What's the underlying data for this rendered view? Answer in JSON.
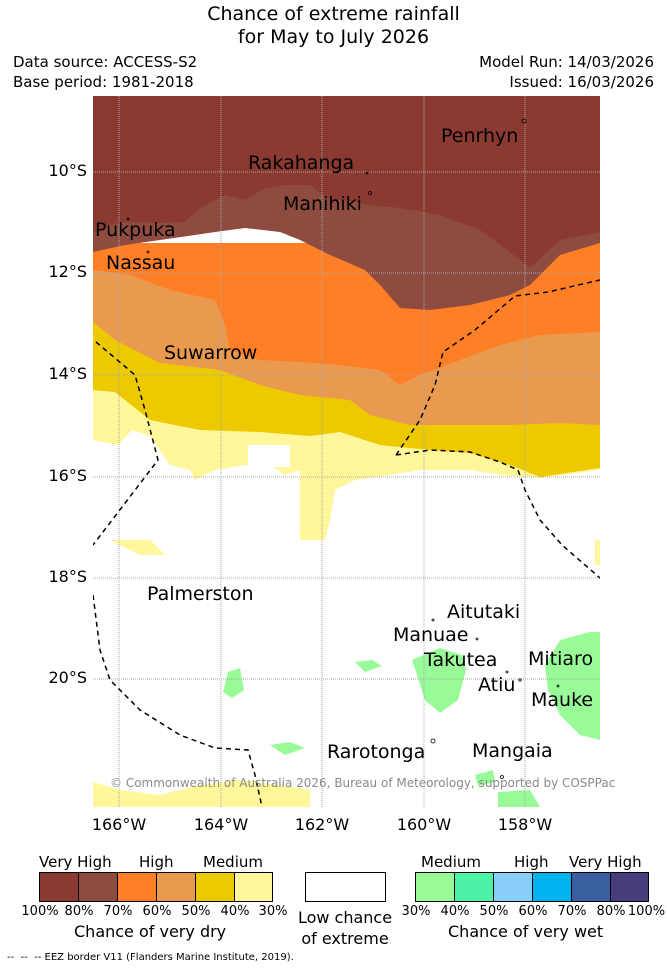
{
  "header": {
    "title_line1": "Chance of extreme rainfall",
    "title_line2": "for May to July 2026",
    "data_source": "Data source: ACCESS-S2",
    "base_period": "Base period: 1981-2018",
    "model_run": "Model Run: 14/03/2026",
    "issued": "Issued: 16/03/2026"
  },
  "map": {
    "lat_labels": [
      "10°S",
      "12°S",
      "14°S",
      "16°S",
      "18°S",
      "20°S"
    ],
    "lon_labels": [
      "166°W",
      "164°W",
      "162°W",
      "160°W",
      "158°W"
    ],
    "islands": [
      "Penrhyn",
      "Rakahanga",
      "Manihiki",
      "Pukpuka",
      "Nassau",
      "Suwarrow",
      "Palmerston",
      "Aitutaki",
      "Manuae",
      "Takutea",
      "Mitiaro",
      "Atiu",
      "Mauke",
      "Rarotonga",
      "Mangaia"
    ],
    "copyright": "© Commonwealth of Australia 2026, Bureau of Meteorology, supported by COSPPac"
  },
  "legend": {
    "dry_headers": [
      "Very High",
      "High",
      "Medium"
    ],
    "dry_ticks": [
      "100%",
      "80%",
      "70%",
      "60%",
      "50%",
      "40%",
      "30%"
    ],
    "dry_colors": [
      "#8b3a32",
      "#8d4c3f",
      "#ff7f27",
      "#ea9a4f",
      "#edc900",
      "#fff79a"
    ],
    "dry_caption": "Chance of very dry",
    "low_caption_line1": "Low chance",
    "low_caption_line2": "of extreme",
    "wet_headers": [
      "Medium",
      "High",
      "Very High"
    ],
    "wet_ticks": [
      "30%",
      "40%",
      "50%",
      "60%",
      "70%",
      "80%",
      "100%"
    ],
    "wet_colors": [
      "#98fb98",
      "#4cf2a6",
      "#87cefa",
      "#00b2ee",
      "#3a5f9e",
      "#483d7c"
    ],
    "wet_caption": "Chance of very wet",
    "eez_note": "--  --  -- EEZ border V11 (Flanders Marine Institute, 2019)."
  }
}
